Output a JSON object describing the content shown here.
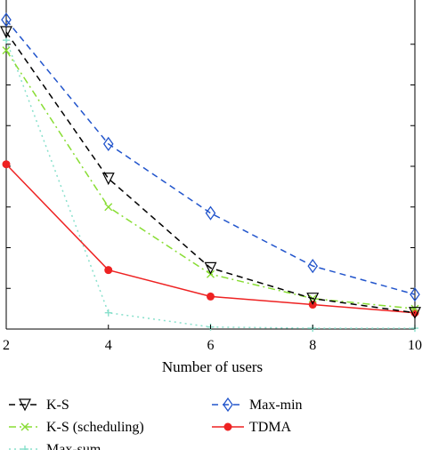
{
  "chart_data": {
    "type": "line",
    "xlabel": "Number of users",
    "ylabel": "",
    "title": "",
    "x": [
      2,
      4,
      6,
      8,
      10
    ],
    "x_ticks": [
      "2",
      "4",
      "6",
      "8",
      "10"
    ],
    "xlim": [
      2,
      10
    ],
    "ylim": [
      0,
      8
    ],
    "grid": false,
    "legend_placement": "bottom",
    "series": [
      {
        "name": "K-S",
        "values": [
          7.3,
          3.7,
          1.5,
          0.75,
          0.4
        ],
        "color": "#000000",
        "dash": "dashed",
        "marker": "triangle-down"
      },
      {
        "name": "K-S (scheduling)",
        "values": [
          6.85,
          3.0,
          1.35,
          0.75,
          0.5
        ],
        "color": "#88dd33",
        "dash": "dashdot",
        "marker": "x"
      },
      {
        "name": "Max-sum",
        "values": [
          7.1,
          0.4,
          0.05,
          0.02,
          0.02
        ],
        "color": "#88e0cc",
        "dash": "dotted",
        "marker": "plus"
      },
      {
        "name": "Max-min",
        "values": [
          7.6,
          4.55,
          2.85,
          1.55,
          0.85
        ],
        "color": "#2255cc",
        "dash": "dashed",
        "marker": "diamond"
      },
      {
        "name": "TDMA",
        "values": [
          4.05,
          1.45,
          0.8,
          0.6,
          0.4
        ],
        "color": "#ee2222",
        "dash": "solid",
        "marker": "circle"
      }
    ]
  }
}
